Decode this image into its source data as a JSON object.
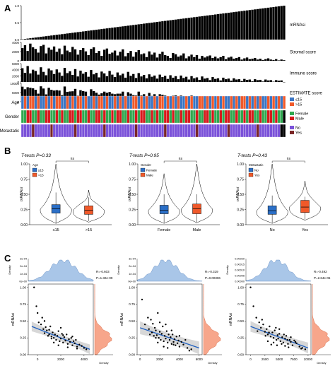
{
  "panels": {
    "a": "A",
    "b": "B",
    "c": "C"
  },
  "colors": {
    "bar": "#000000",
    "age_le15": "#3a75c4",
    "age_gt15": "#f0592a",
    "female": "#2fa84f",
    "male": "#d7191c",
    "no": "#7b52d9",
    "yes": "#7a2626",
    "box_blue": "#2b6fc7",
    "box_orange": "#f0592a",
    "density_blue": "#a9c6e8",
    "density_orange": "#f7a68b",
    "reg_line": "#1f5fbf"
  },
  "chart_data": [
    {
      "id": "a_heatmap",
      "type": "bar",
      "n": 100,
      "tracks": [
        {
          "label": "mRNAsi",
          "ticks": [
            "1.0",
            "0.5",
            "0.0"
          ],
          "ylim": [
            0,
            1
          ]
        },
        {
          "label": "Stromal score",
          "ticks": [
            "4000",
            "2000",
            "0"
          ],
          "ylim": [
            0,
            4500
          ]
        },
        {
          "label": "Immune score",
          "ticks": [
            "6000",
            "4000",
            "2000",
            "0"
          ],
          "ylim": [
            0,
            6000
          ]
        },
        {
          "label": "ESTIMATE score",
          "ticks": [
            "10000",
            "5000",
            "0"
          ],
          "ylim": [
            0,
            10000
          ]
        }
      ],
      "mrnasi_values": [
        0.01,
        0.02,
        0.03,
        0.04,
        0.05,
        0.06,
        0.07,
        0.08,
        0.09,
        0.1,
        0.11,
        0.12,
        0.13,
        0.14,
        0.15,
        0.16,
        0.17,
        0.18,
        0.19,
        0.2,
        0.21,
        0.22,
        0.23,
        0.24,
        0.25,
        0.26,
        0.27,
        0.28,
        0.29,
        0.3,
        0.31,
        0.32,
        0.33,
        0.34,
        0.35,
        0.36,
        0.37,
        0.38,
        0.39,
        0.4,
        0.41,
        0.42,
        0.43,
        0.44,
        0.45,
        0.46,
        0.47,
        0.48,
        0.49,
        0.5,
        0.51,
        0.52,
        0.53,
        0.54,
        0.55,
        0.56,
        0.57,
        0.58,
        0.59,
        0.6,
        0.61,
        0.62,
        0.63,
        0.64,
        0.65,
        0.66,
        0.67,
        0.68,
        0.69,
        0.7,
        0.71,
        0.72,
        0.73,
        0.74,
        0.75,
        0.76,
        0.77,
        0.78,
        0.79,
        0.8,
        0.81,
        0.82,
        0.83,
        0.84,
        0.85,
        0.86,
        0.87,
        0.88,
        0.89,
        0.9,
        0.91,
        0.92,
        0.93,
        0.94,
        0.95,
        0.96,
        0.97,
        0.98,
        0.99,
        1.0
      ],
      "stromal_values": [
        3100,
        3800,
        2400,
        4200,
        3300,
        2900,
        2000,
        3600,
        3900,
        1800,
        3200,
        2700,
        3500,
        2200,
        3000,
        1600,
        3700,
        2500,
        2100,
        3400,
        2800,
        1500,
        2600,
        3100,
        2300,
        1400,
        2900,
        3300,
        1900,
        2400,
        1200,
        2700,
        3000,
        1700,
        2000,
        2500,
        1300,
        2200,
        2800,
        1100,
        1900,
        2400,
        1000,
        2100,
        2600,
        1600,
        1800,
        900,
        2300,
        1500,
        2000,
        800,
        1700,
        2200,
        1400,
        1200,
        700,
        1900,
        1600,
        1000,
        1300,
        1800,
        600,
        1100,
        1500,
        900,
        1400,
        500,
        1200,
        800,
        1100,
        1300,
        700,
        1000,
        600,
        900,
        1200,
        400,
        800,
        1000,
        500,
        700,
        900,
        300,
        600,
        800,
        400,
        500,
        700,
        300,
        500,
        200,
        400,
        600,
        300,
        200,
        400,
        100,
        300,
        150
      ],
      "immune_values": [
        4500,
        3000,
        5200,
        2800,
        4000,
        3600,
        2400,
        4800,
        3300,
        2200,
        4400,
        3800,
        2600,
        4100,
        3100,
        2000,
        4600,
        2900,
        3500,
        2300,
        4200,
        1800,
        3700,
        2700,
        3200,
        1700,
        3900,
        2500,
        3000,
        1500,
        3400,
        2800,
        1900,
        3600,
        2400,
        1600,
        3100,
        2200,
        2700,
        1400,
        3300,
        2000,
        2600,
        1300,
        2900,
        1800,
        2300,
        1200,
        2500,
        1700,
        2100,
        1100,
        2400,
        1600,
        2000,
        1000,
        2200,
        1400,
        1900,
        900,
        2100,
        1300,
        1700,
        800,
        1900,
        1200,
        1500,
        700,
        1800,
        1100,
        1300,
        600,
        1600,
        1000,
        1200,
        500,
        1400,
        900,
        1100,
        400,
        1200,
        800,
        900,
        300,
        1000,
        700,
        800,
        200,
        900,
        600,
        700,
        150,
        800,
        500,
        600,
        100,
        600,
        400,
        500,
        -100
      ],
      "estimate_values": [
        8200,
        6800,
        7900,
        7600,
        7300,
        6500,
        4400,
        8400,
        7200,
        4000,
        7600,
        6500,
        6100,
        6300,
        6100,
        3600,
        8300,
        5400,
        5600,
        5700,
        7000,
        3300,
        6300,
        5800,
        5500,
        3100,
        6800,
        5800,
        4900,
        3900,
        4600,
        5500,
        4900,
        5300,
        4400,
        4100,
        4400,
        4400,
        5500,
        2500,
        5200,
        4400,
        3600,
        3400,
        5500,
        3400,
        4100,
        2100,
        4800,
        3200,
        4100,
        1900,
        4100,
        3800,
        3400,
        2200,
        2900,
        3300,
        3500,
        1900,
        3400,
        3100,
        2300,
        1900,
        3400,
        2100,
        2900,
        1200,
        3000,
        1900,
        2400,
        1900,
        2300,
        2000,
        1800,
        1400,
        2600,
        1300,
        1900,
        1400,
        1700,
        1500,
        1800,
        600,
        1600,
        1500,
        1200,
        700,
        1600,
        900,
        1200,
        350,
        1200,
        1100,
        900,
        300,
        1000,
        500,
        800,
        200
      ]
    },
    {
      "id": "a_annotation",
      "type": "heatmap",
      "rows": [
        "Age",
        "Gender",
        "Metastatic"
      ],
      "legends": [
        {
          "items": [
            {
              "label": "≤15",
              "color": "#3a75c4"
            },
            {
              "label": ">15",
              "color": "#f0592a"
            }
          ]
        },
        {
          "items": [
            {
              "label": "Female",
              "color": "#2fa84f"
            },
            {
              "label": "Male",
              "color": "#d7191c"
            }
          ]
        },
        {
          "items": [
            {
              "label": "No",
              "color": "#7b52d9"
            },
            {
              "label": "Yes",
              "color": "#7a2626"
            }
          ]
        }
      ],
      "age": "ABABBABAABABABBAABABABBABAABABBABAABABABAABBABABAABABBABABABAABABAABBABABABABAABABABBABABABAABABABAB",
      "gender": "FFMMFFMFFMMFFMFMFFMMFMMFFMFFMMFMFFMFMMFFMFFMFMMFFMFMFFMMFMFFMFMMFFMFFMMFMFFMFMMFFMFFMFMMFFMFFMMFMFF",
      "metastatic": "NNNNYNNNNNNYNNNNNNNNYNNNNNNNNNNYNNNNNNNNNNNYNNNNNNNNNNYNNNNNNNNNNNYNNNNNNNNNNNYNNNNNNNNNNYNNNNNNNN"
    },
    {
      "id": "b_age",
      "type": "box",
      "title": "T-tests P=0.33",
      "ylabel": "mRNAsi",
      "yticks": [
        "1.00",
        "0.75",
        "0.50",
        "0.25",
        "0.00"
      ],
      "ylim": [
        0,
        1
      ],
      "sig": "ns",
      "legend_title": "Age",
      "categories": [
        "≤15",
        ">15"
      ],
      "boxes": [
        {
          "min": 0.02,
          "q1": 0.19,
          "median": 0.26,
          "q3": 0.33,
          "max": 0.53,
          "vmin": 0.02,
          "vmax": 1.0,
          "color": "#2b6fc7"
        },
        {
          "min": 0.06,
          "q1": 0.17,
          "median": 0.24,
          "q3": 0.31,
          "max": 0.45,
          "vmin": 0.04,
          "vmax": 0.57,
          "color": "#f0592a"
        }
      ]
    },
    {
      "id": "b_gender",
      "type": "box",
      "title": "T-tests P=0.95",
      "ylabel": "mRNAsi",
      "yticks": [
        "1.00",
        "0.75",
        "0.50",
        "0.25",
        "0.00"
      ],
      "ylim": [
        0,
        1
      ],
      "sig": "ns",
      "legend_title": "Gender",
      "categories": [
        "Female",
        "Male"
      ],
      "boxes": [
        {
          "min": 0.03,
          "q1": 0.18,
          "median": 0.24,
          "q3": 0.32,
          "max": 0.5,
          "vmin": 0.02,
          "vmax": 0.84,
          "color": "#2b6fc7"
        },
        {
          "min": 0.04,
          "q1": 0.18,
          "median": 0.26,
          "q3": 0.34,
          "max": 0.5,
          "vmin": 0.03,
          "vmax": 1.0,
          "color": "#f0592a"
        }
      ]
    },
    {
      "id": "b_metastatic",
      "type": "box",
      "title": "T-tests P=0.43",
      "ylabel": "mRNAsi",
      "yticks": [
        "1.00",
        "0.75",
        "0.50",
        "0.25",
        "0.00"
      ],
      "ylim": [
        0,
        1
      ],
      "sig": "ns",
      "legend_title": "Metastatic",
      "categories": [
        "No",
        "Yes"
      ],
      "boxes": [
        {
          "min": 0.03,
          "q1": 0.17,
          "median": 0.23,
          "q3": 0.31,
          "max": 0.48,
          "vmin": 0.02,
          "vmax": 1.0,
          "color": "#2b6fc7"
        },
        {
          "min": 0.08,
          "q1": 0.2,
          "median": 0.29,
          "q3": 0.4,
          "max": 0.46,
          "vmin": 0.07,
          "vmax": 0.72,
          "color": "#f0592a"
        }
      ]
    },
    {
      "id": "c_stromal",
      "type": "scatter",
      "ylabel": "mRNAsi",
      "xticks": [
        "0",
        "2000",
        "4000"
      ],
      "xlim": [
        -800,
        4800
      ],
      "yticks": [
        "1.00",
        "0.75",
        "0.50",
        "0.25",
        "0.00"
      ],
      "ylim": [
        0,
        1.05
      ],
      "density_label": "Density",
      "density_ticks": [
        "3e-04",
        "2e-04",
        "1e-04",
        "0e+00"
      ],
      "density_peak": 2200,
      "density_sd": 1100,
      "right_density_mean": 0.24,
      "right_density_sd": 0.12,
      "right_density_label": "Density",
      "stats": [
        "R=-0.603",
        "P=1.32e-09"
      ],
      "fit": {
        "x0": -500,
        "y0": 0.42,
        "x1": 4500,
        "y1": 0.08,
        "band": 0.045
      },
      "x": [
        -300,
        -100,
        0,
        100,
        300,
        400,
        500,
        600,
        700,
        800,
        900,
        1000,
        1100,
        1200,
        1300,
        1400,
        1500,
        1600,
        1700,
        1800,
        1900,
        2000,
        2100,
        2200,
        2300,
        2400,
        2500,
        2600,
        2700,
        2800,
        2900,
        3000,
        3100,
        3200,
        3300,
        3400,
        3600,
        3800,
        4000,
        4200,
        600,
        1000,
        1400,
        1800,
        2200,
        2600,
        3000,
        3400,
        1200,
        2000
      ],
      "y": [
        1.0,
        0.72,
        0.62,
        0.48,
        0.45,
        0.55,
        0.38,
        0.32,
        0.41,
        0.36,
        0.28,
        0.3,
        0.42,
        0.27,
        0.33,
        0.25,
        0.3,
        0.22,
        0.28,
        0.35,
        0.2,
        0.24,
        0.31,
        0.18,
        0.26,
        0.21,
        0.3,
        0.16,
        0.23,
        0.19,
        0.25,
        0.14,
        0.2,
        0.17,
        0.22,
        0.12,
        0.15,
        0.13,
        0.1,
        0.08,
        0.5,
        0.37,
        0.18,
        0.14,
        0.29,
        0.11,
        0.27,
        0.09,
        0.24,
        0.4
      ]
    },
    {
      "id": "c_immune",
      "type": "scatter",
      "ylabel": "mRNAsi",
      "xticks": [
        "0",
        "2000",
        "4000",
        "6000"
      ],
      "xlim": [
        -300,
        6300
      ],
      "yticks": [
        "1.00",
        "0.75",
        "0.50",
        "0.25",
        "0.00"
      ],
      "ylim": [
        0,
        1.05
      ],
      "density_label": "Density",
      "density_ticks": [
        "3e-04",
        "2e-04",
        "1e-04",
        "0e+00"
      ],
      "density_peak": 2600,
      "density_sd": 1200,
      "right_density_mean": 0.24,
      "right_density_sd": 0.12,
      "right_density_label": "Density",
      "stats": [
        "R=-0.319",
        "P=0.00306"
      ],
      "fit": {
        "x0": 0,
        "y0": 0.4,
        "x1": 6000,
        "y1": 0.1,
        "band": 0.06
      },
      "x": [
        200,
        500,
        800,
        900,
        1100,
        1200,
        1300,
        1400,
        1500,
        1600,
        1700,
        1800,
        1900,
        2000,
        2100,
        2200,
        2300,
        2400,
        2500,
        2600,
        2700,
        2800,
        2900,
        3000,
        3100,
        3200,
        3300,
        3400,
        3500,
        3600,
        3700,
        3800,
        3900,
        4000,
        4200,
        4400,
        4600,
        4800,
        5200,
        1000,
        1800,
        2600,
        3400,
        1600,
        2400,
        3200,
        4000,
        5000,
        2000,
        2800
      ],
      "y": [
        0.82,
        0.45,
        0.55,
        0.38,
        0.52,
        0.33,
        0.46,
        0.28,
        0.4,
        0.36,
        0.29,
        0.62,
        0.25,
        0.34,
        0.22,
        0.31,
        0.42,
        0.2,
        0.28,
        0.24,
        0.35,
        0.18,
        0.3,
        0.22,
        0.26,
        0.16,
        0.3,
        0.19,
        0.23,
        0.14,
        0.27,
        0.17,
        0.21,
        0.12,
        0.19,
        0.15,
        0.22,
        0.1,
        0.08,
        0.3,
        0.18,
        0.45,
        0.15,
        0.25,
        0.12,
        0.36,
        0.28,
        0.06,
        0.48,
        0.1
      ]
    },
    {
      "id": "c_estimate",
      "type": "scatter",
      "ylabel": "mRNAsi",
      "xticks": [
        "0",
        "2500",
        "5000",
        "7500",
        "10000"
      ],
      "xlim": [
        -800,
        10500
      ],
      "yticks": [
        "1.00",
        "0.75",
        "0.50",
        "0.25",
        "0.00"
      ],
      "ylim": [
        0,
        1.05
      ],
      "density_label": "Density",
      "density_ticks": [
        "0.00020",
        "0.00015",
        "0.00010",
        "0.00005",
        "0.00000"
      ],
      "density_peak": 4500,
      "density_sd": 2000,
      "right_density_mean": 0.24,
      "right_density_sd": 0.12,
      "right_density_label": "Density",
      "stats": [
        "R=-0.492",
        "P=2.64e-06"
      ],
      "fit": {
        "x0": 0,
        "y0": 0.42,
        "x1": 10000,
        "y1": 0.1,
        "band": 0.05
      },
      "x": [
        0,
        500,
        1000,
        1500,
        1800,
        2200,
        2500,
        2800,
        3000,
        3300,
        3500,
        3800,
        4000,
        4200,
        4500,
        4700,
        5000,
        5200,
        5500,
        5700,
        6000,
        6200,
        6500,
        6800,
        7000,
        7300,
        7600,
        8000,
        8500,
        9000,
        9500,
        2000,
        3000,
        4000,
        5000,
        6000,
        7000,
        1200,
        3600,
        4800,
        5800,
        6600,
        2600,
        4400,
        5400,
        7800,
        3200,
        4600,
        6400,
        8800
      ],
      "y": [
        1.0,
        0.72,
        0.55,
        0.48,
        0.4,
        0.45,
        0.34,
        0.38,
        0.3,
        0.42,
        0.27,
        0.33,
        0.25,
        0.36,
        0.22,
        0.29,
        0.31,
        0.2,
        0.26,
        0.18,
        0.24,
        0.28,
        0.16,
        0.22,
        0.19,
        0.14,
        0.21,
        0.17,
        0.12,
        0.1,
        0.08,
        0.52,
        0.2,
        0.18,
        0.38,
        0.13,
        0.26,
        0.35,
        0.15,
        0.24,
        0.3,
        0.11,
        0.28,
        0.4,
        0.16,
        0.19,
        0.33,
        0.14,
        0.22,
        0.09
      ]
    }
  ]
}
